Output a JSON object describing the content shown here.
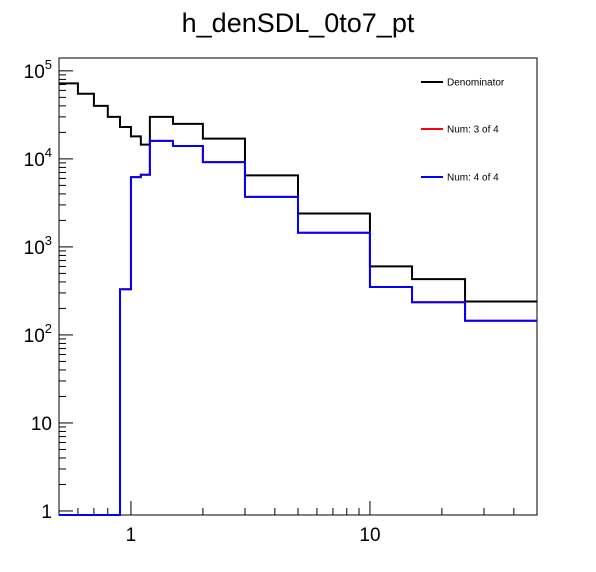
{
  "chart_data": {
    "type": "line",
    "style": "step-histogram",
    "title": "h_denSDL_0to7_pt",
    "xlabel": "",
    "ylabel": "",
    "xscale": "log",
    "yscale": "log",
    "xlim": [
      0.5,
      50
    ],
    "ylim": [
      0.9,
      140000
    ],
    "x_ticks": [
      {
        "value": 1,
        "label": "1"
      },
      {
        "value": 10,
        "label": "10"
      }
    ],
    "y_ticks": [
      {
        "value": 1,
        "label": "1"
      },
      {
        "value": 10,
        "label": "10"
      },
      {
        "value": 100,
        "label": "10",
        "exp": "2"
      },
      {
        "value": 1000,
        "label": "10",
        "exp": "3"
      },
      {
        "value": 10000,
        "label": "10",
        "exp": "4"
      },
      {
        "value": 100000,
        "label": "10",
        "exp": "5"
      }
    ],
    "legend_position": "top-right",
    "bin_edges": [
      0.5,
      0.6,
      0.7,
      0.8,
      0.9,
      1.0,
      1.1,
      1.2,
      1.5,
      2.0,
      3.0,
      5.0,
      10.0,
      15.0,
      25.0,
      50.0
    ],
    "series": [
      {
        "name": "Denominator",
        "color": "#000000",
        "values": [
          72000,
          55000,
          40000,
          30000,
          23000,
          18000,
          14500,
          30000,
          25000,
          17000,
          6500,
          2400,
          600,
          430,
          240
        ]
      },
      {
        "name": "Num: 3 of 4",
        "color": "#ff0000",
        "values": [
          0.9,
          0.9,
          0.9,
          0.9,
          330,
          6200,
          6600,
          16000,
          14000,
          9200,
          3700,
          1450,
          350,
          235,
          145
        ]
      },
      {
        "name": "Num: 4 of 4",
        "color": "#0000ff",
        "values": [
          0.9,
          0.9,
          0.9,
          0.9,
          330,
          6200,
          6600,
          16000,
          14000,
          9200,
          3700,
          1450,
          350,
          235,
          145
        ]
      }
    ]
  }
}
